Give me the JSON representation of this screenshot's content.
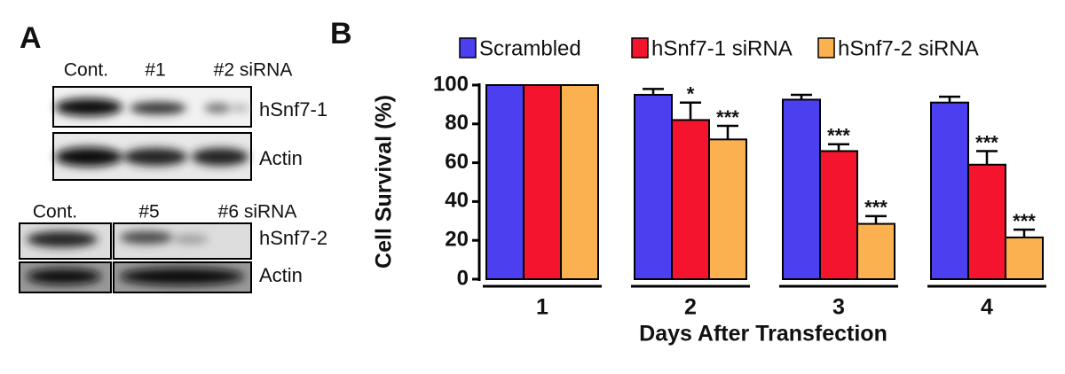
{
  "panel_a": {
    "label": "A",
    "blots": [
      {
        "lanes": [
          "Cont.",
          "#1",
          "#2 siRNA"
        ],
        "rows": [
          "hSnf7-1",
          "Actin"
        ]
      },
      {
        "lanes": [
          "Cont.",
          "#5",
          "#6 siRNA"
        ],
        "rows": [
          "hSnf7-2",
          "Actin"
        ]
      }
    ]
  },
  "chart_data": {
    "type": "bar",
    "panel_label": "B",
    "ylabel": "Cell Survival (%)",
    "xlabel": "Days After Transfection",
    "categories": [
      "1",
      "2",
      "3",
      "4"
    ],
    "series": [
      {
        "name": "Scrambled",
        "color": "#4b3ff0",
        "values": [
          100,
          95,
          92.5,
          91
        ],
        "errors": [
          null,
          3,
          2.5,
          3
        ],
        "significance": [
          null,
          null,
          null,
          null
        ]
      },
      {
        "name": "hSnf7-1 siRNA",
        "color": "#f5142d",
        "values": [
          100,
          82,
          66,
          59
        ],
        "errors": [
          null,
          9,
          3.5,
          7
        ],
        "significance": [
          null,
          "*",
          "***",
          "***"
        ]
      },
      {
        "name": "hSnf7-2 siRNA",
        "color": "#fbb150",
        "values": [
          100,
          72,
          28.5,
          21.5
        ],
        "errors": [
          null,
          7,
          4,
          4
        ],
        "significance": [
          null,
          "***",
          "***",
          "***"
        ]
      }
    ],
    "ylim": [
      0,
      100
    ],
    "yticks": [
      0,
      20,
      40,
      60,
      80,
      100
    ]
  }
}
